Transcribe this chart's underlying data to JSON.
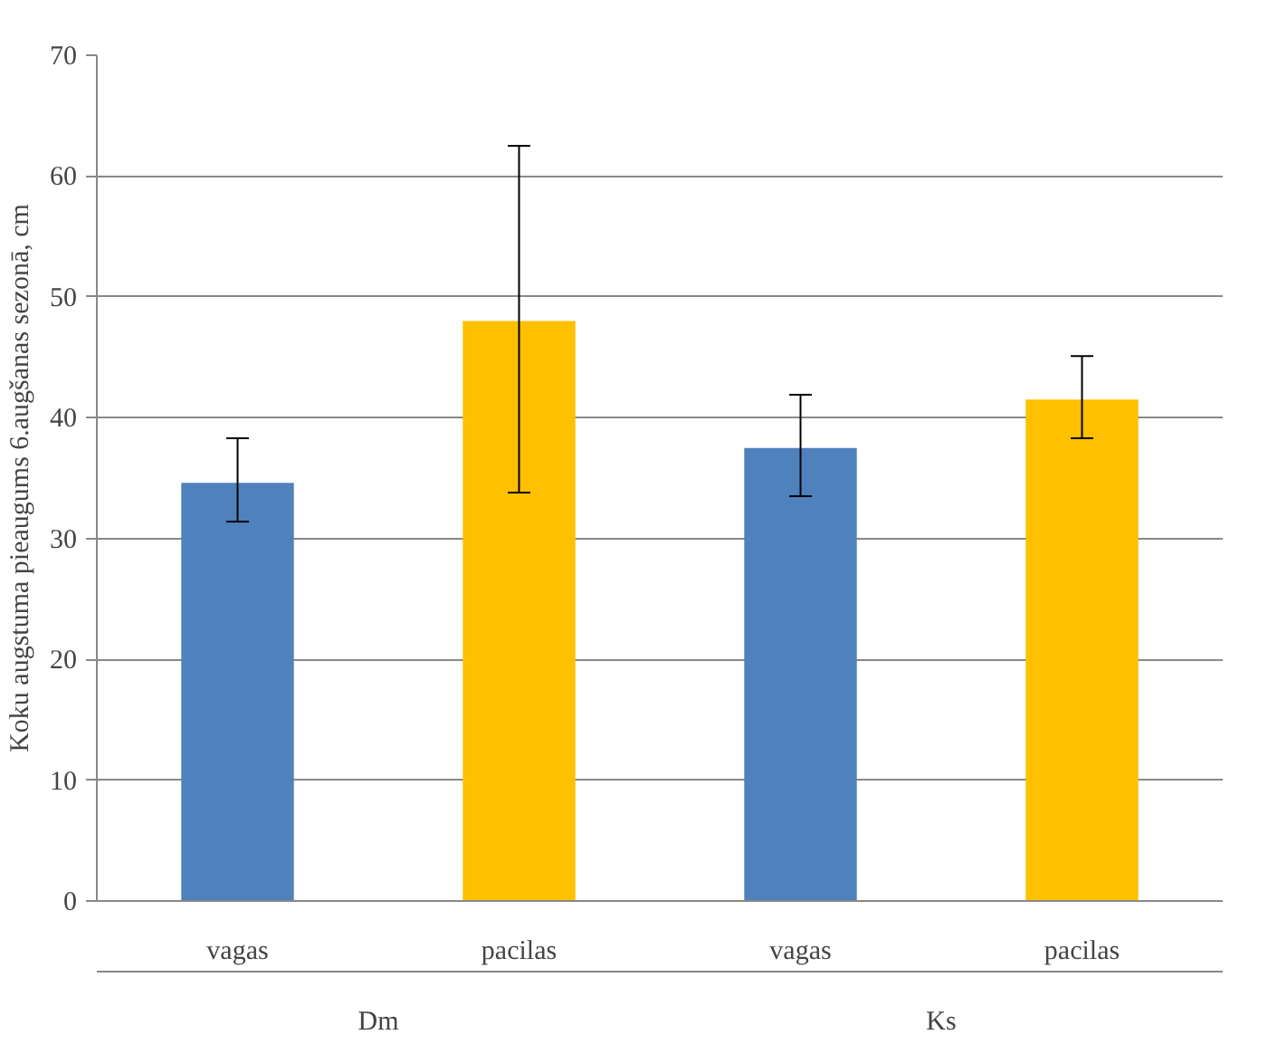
{
  "chart_data": {
    "type": "bar",
    "ylabel": "Koku augstuma pieaugums 6.augšanas sezonā, cm",
    "categories": [
      "vagas",
      "pacilas",
      "vagas",
      "pacilas"
    ],
    "values": [
      34.6,
      48.0,
      37.5,
      41.5
    ],
    "colors": [
      "#4f81bd",
      "#ffc000",
      "#4f81bd",
      "#ffc000"
    ],
    "errors": [
      [
        31.4,
        38.3
      ],
      [
        33.8,
        62.5
      ],
      [
        33.5,
        41.9
      ],
      [
        38.3,
        45.1
      ]
    ],
    "ylim": [
      0,
      70
    ],
    "yticks": [
      0,
      10,
      20,
      30,
      40,
      50,
      60,
      70
    ],
    "grid": "y",
    "annotations": [
      "Dm",
      "Ks"
    ]
  }
}
